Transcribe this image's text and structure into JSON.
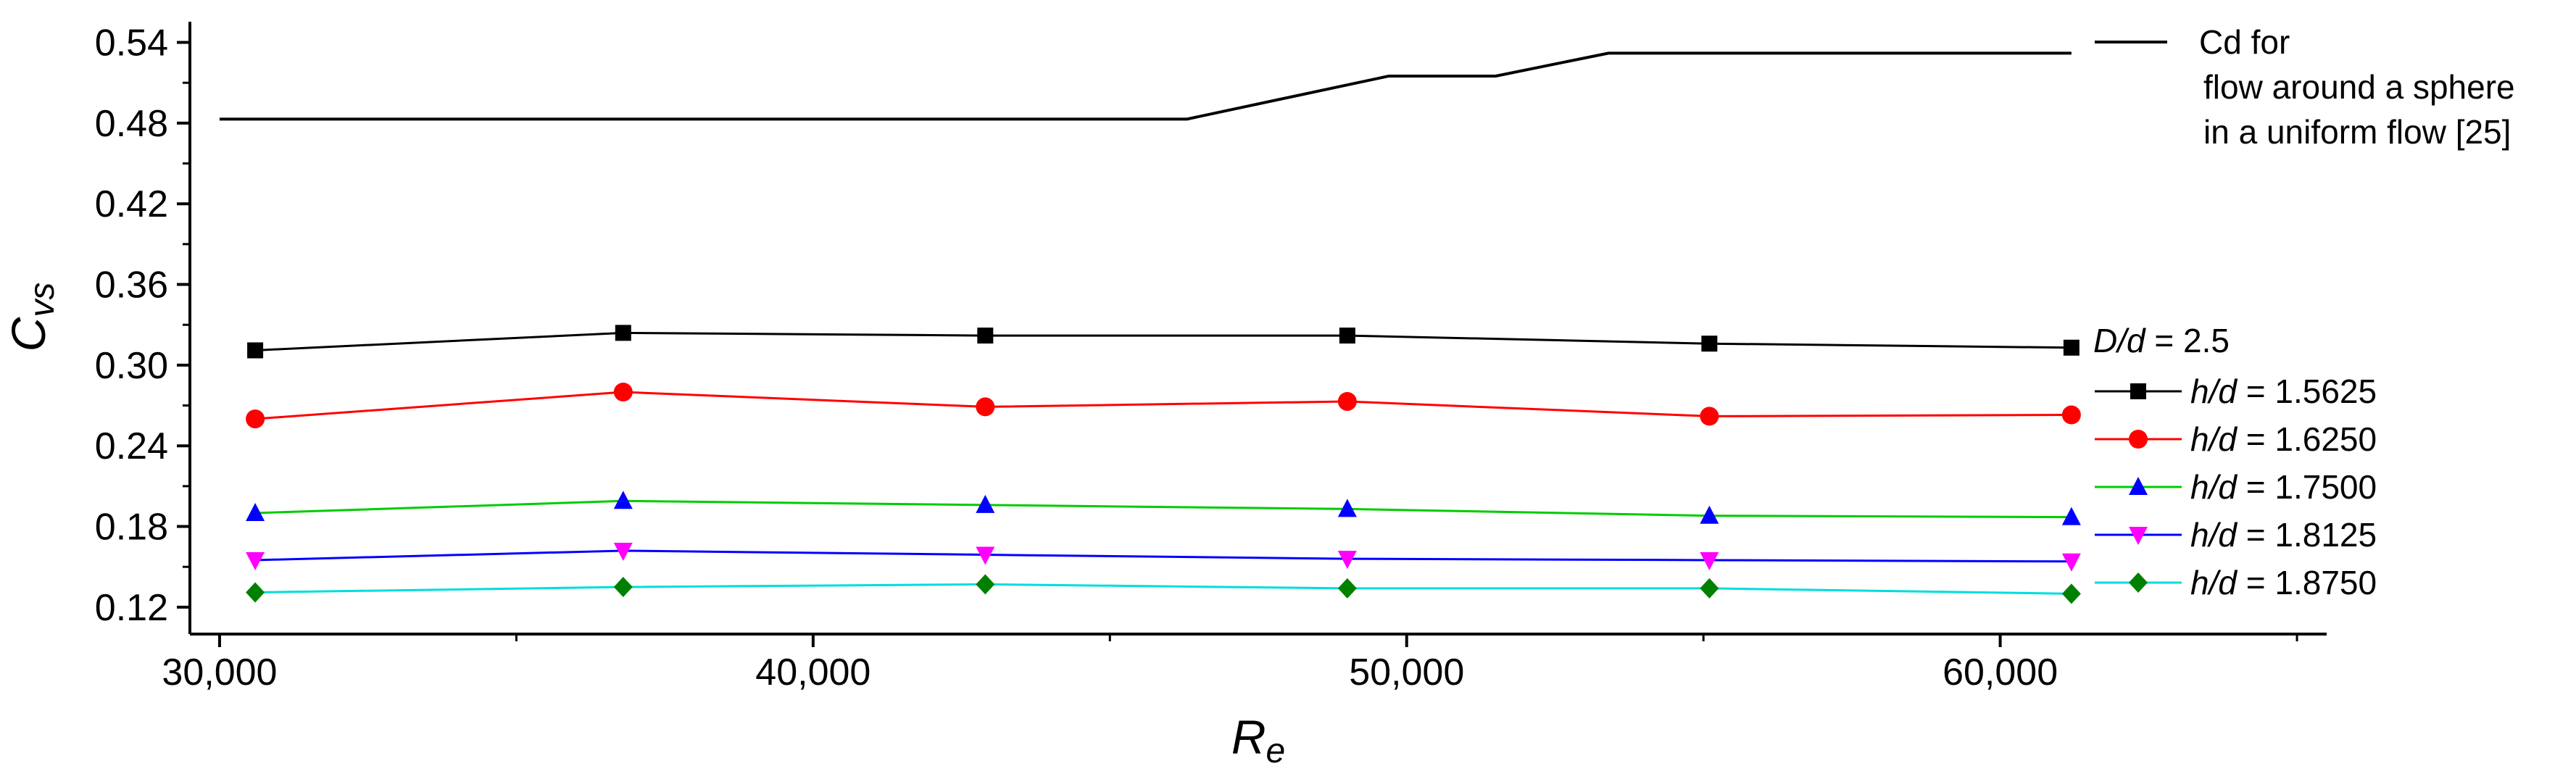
{
  "chart_data": {
    "type": "line",
    "xlabel": "R",
    "xlabel_sub": "e",
    "ylabel": "C",
    "ylabel_sub": "vs",
    "xlim": [
      29500,
      65500
    ],
    "ylim": [
      0.1,
      0.55
    ],
    "x_ticks": [
      30000,
      40000,
      50000,
      60000
    ],
    "x_tick_labels": [
      "30,000",
      "40,000",
      "50,000",
      "60,000"
    ],
    "y_ticks": [
      0.12,
      0.18,
      0.24,
      0.3,
      0.36,
      0.42,
      0.48,
      0.54
    ],
    "y_tick_labels": [
      "0.12",
      "0.18",
      "0.24",
      "0.30",
      "0.36",
      "0.42",
      "0.48",
      "0.54"
    ],
    "grid": false,
    "reference": {
      "label_lines": [
        "Cd for",
        "flow around a sphere",
        "in a uniform flow [25]"
      ],
      "color": "#000000",
      "x": [
        30000,
        46300,
        49700,
        51500,
        53400,
        61200
      ],
      "y": [
        0.483,
        0.483,
        0.515,
        0.515,
        0.532,
        0.532
      ]
    },
    "legend_title": {
      "italic": "D/d",
      "rest": " = 2.5"
    },
    "series": [
      {
        "name": "h/d = 1.5625",
        "label_italic": "h/d",
        "label_rest": " = 1.5625",
        "color": "#000000",
        "marker_color": "#000000",
        "marker": "square",
        "x": [
          30600,
          36800,
          42900,
          49000,
          55100,
          61200
        ],
        "y": [
          0.311,
          0.324,
          0.322,
          0.322,
          0.316,
          0.313
        ]
      },
      {
        "name": "h/d = 1.6250",
        "label_italic": "h/d",
        "label_rest": " = 1.6250",
        "color": "#ff0000",
        "marker_color": "#ff0000",
        "marker": "circle",
        "x": [
          30600,
          36800,
          42900,
          49000,
          55100,
          61200
        ],
        "y": [
          0.26,
          0.28,
          0.269,
          0.273,
          0.262,
          0.263
        ]
      },
      {
        "name": "h/d = 1.7500",
        "label_italic": "h/d",
        "label_rest": " = 1.7500",
        "color": "#00cc00",
        "marker_color": "#0000ff",
        "marker": "triangle-up",
        "x": [
          30600,
          36800,
          42900,
          49000,
          55100,
          61200
        ],
        "y": [
          0.19,
          0.199,
          0.196,
          0.193,
          0.188,
          0.187
        ]
      },
      {
        "name": "h/d = 1.8125",
        "label_italic": "h/d",
        "label_rest": " = 1.8125",
        "color": "#0000ff",
        "marker_color": "#ff00ff",
        "marker": "triangle-down",
        "x": [
          30600,
          36800,
          42900,
          49000,
          55100,
          61200
        ],
        "y": [
          0.155,
          0.162,
          0.159,
          0.156,
          0.155,
          0.154
        ]
      },
      {
        "name": "h/d = 1.8750",
        "label_italic": "h/d",
        "label_rest": " = 1.8750",
        "color": "#00dddd",
        "marker_color": "#008000",
        "marker": "diamond",
        "x": [
          30600,
          36800,
          42900,
          49000,
          55100,
          61200
        ],
        "y": [
          0.131,
          0.135,
          0.137,
          0.134,
          0.134,
          0.13
        ]
      }
    ]
  }
}
